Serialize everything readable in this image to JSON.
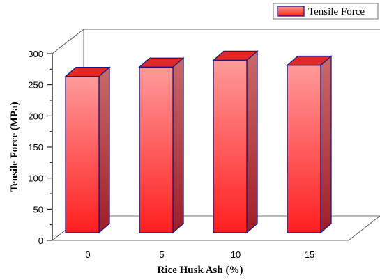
{
  "chart_data": {
    "type": "bar",
    "categories": [
      "0",
      "5",
      "10",
      "15"
    ],
    "series": [
      {
        "name": "Tensile Force",
        "values": [
          250,
          265,
          276,
          268
        ]
      }
    ],
    "xlabel": "Rice Husk Ash (%)",
    "ylabel": "Tensile Force (MPa)",
    "ylim": [
      0,
      300
    ],
    "yticks": [
      "0",
      "50",
      "100",
      "150",
      "200",
      "250",
      "300"
    ],
    "legend": "top-right",
    "grid": false,
    "colors": {
      "bar_top": "#ff9a9a",
      "bar_bottom": "#ff1f1f",
      "bar_side": "#b82e3a",
      "bar_cap": "#e02828",
      "bar_outline": "#1a1a80"
    }
  }
}
